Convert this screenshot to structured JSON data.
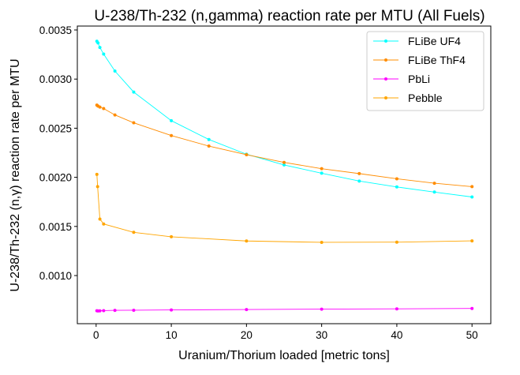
{
  "chart_data": {
    "type": "line",
    "title": "U-238/Th-232 (n,gamma) reaction rate per MTU (All Fuels)",
    "xlabel": "Uranium/Thorium loaded [metric tons]",
    "ylabel": "U-238/Th-232 (n,γ) reaction rate per MTU",
    "xlim": [
      -2.5,
      52.5
    ],
    "ylim": [
      0.00051,
      0.00354
    ],
    "x_ticks": [
      0,
      10,
      20,
      30,
      40,
      50
    ],
    "x_tick_labels": [
      "0",
      "10",
      "20",
      "30",
      "40",
      "50"
    ],
    "y_ticks": [
      0.001,
      0.0015,
      0.002,
      0.0025,
      0.003,
      0.0035
    ],
    "y_tick_labels": [
      "0.0010",
      "0.0015",
      "0.0020",
      "0.0025",
      "0.0030",
      "0.0035"
    ],
    "grid": false,
    "legend_position": "top-right",
    "series": [
      {
        "name": "FLiBe UF4",
        "color": "#00ffff",
        "x": [
          0.1,
          0.25,
          0.5,
          1,
          2.5,
          5,
          10,
          15,
          20,
          25,
          30,
          35,
          40,
          45,
          50
        ],
        "y": [
          0.003385,
          0.003368,
          0.003322,
          0.003255,
          0.003082,
          0.002868,
          0.002577,
          0.002385,
          0.002235,
          0.002126,
          0.002042,
          0.001962,
          0.001902,
          0.00185,
          0.0018
        ]
      },
      {
        "name": "FLiBe ThF4",
        "color": "#ff8c00",
        "x": [
          0.1,
          0.25,
          0.5,
          1,
          2.5,
          5,
          10,
          15,
          20,
          25,
          30,
          35,
          40,
          45,
          50
        ],
        "y": [
          0.002735,
          0.002725,
          0.002715,
          0.0027,
          0.002635,
          0.002555,
          0.002425,
          0.002318,
          0.00223,
          0.002152,
          0.002088,
          0.002038,
          0.001985,
          0.00194,
          0.001905
        ]
      },
      {
        "name": "PbLi",
        "color": "#ff00ff",
        "x": [
          0.1,
          0.25,
          0.5,
          1,
          2.5,
          5,
          10,
          20,
          30,
          40,
          50
        ],
        "y": [
          0.000642,
          0.00064,
          0.000641,
          0.000643,
          0.000646,
          0.000647,
          0.00065,
          0.000654,
          0.000658,
          0.000661,
          0.000665
        ]
      },
      {
        "name": "Pebble",
        "color": "#ffa500",
        "x": [
          0.1,
          0.2,
          0.5,
          1,
          5,
          10,
          20,
          30,
          40,
          50
        ],
        "y": [
          0.00203,
          0.001905,
          0.001575,
          0.001525,
          0.00144,
          0.001395,
          0.001352,
          0.001338,
          0.00134,
          0.001353
        ]
      }
    ]
  }
}
